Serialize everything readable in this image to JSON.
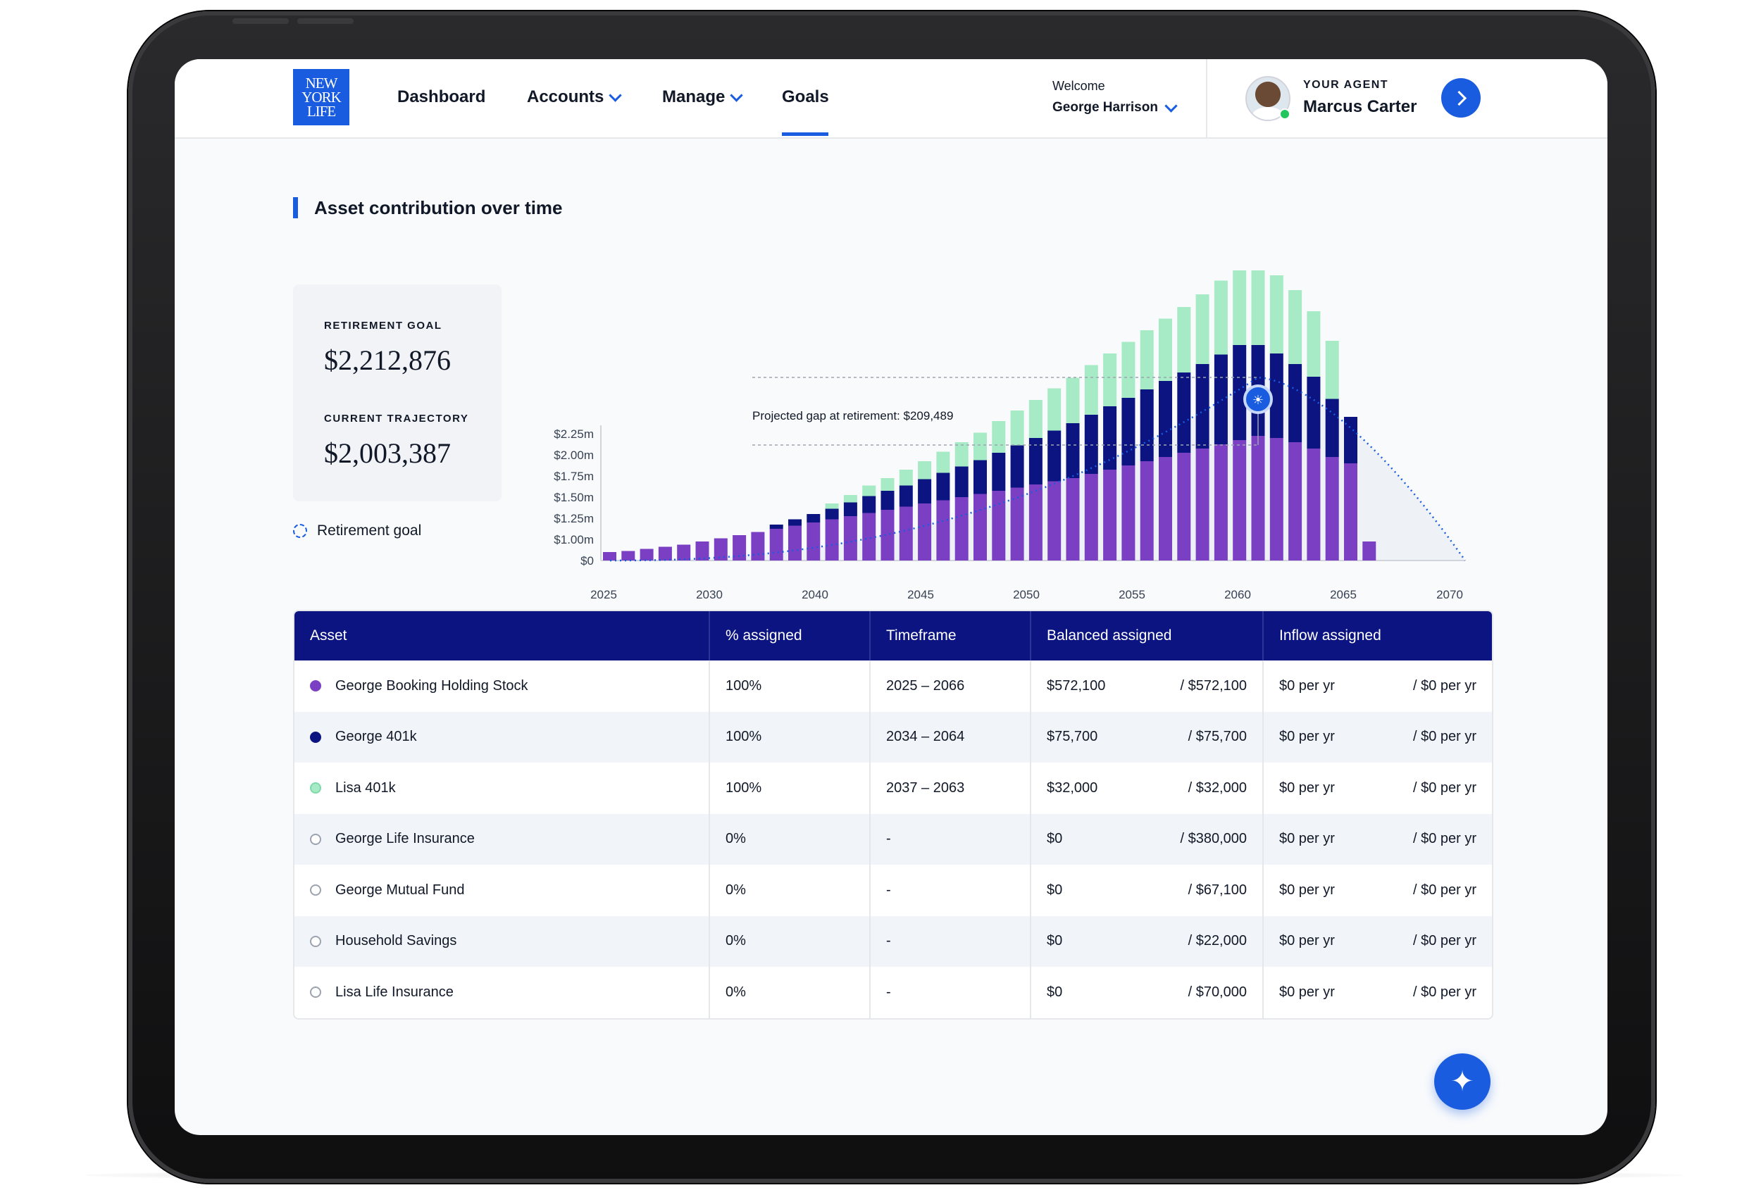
{
  "logo": {
    "line1": "NEW",
    "line2": "YORK",
    "line3": "LIFE"
  },
  "nav": {
    "dashboard": "Dashboard",
    "accounts": "Accounts",
    "manage": "Manage",
    "goals": "Goals"
  },
  "user": {
    "welcome": "Welcome",
    "name": "George Harrison"
  },
  "agent": {
    "label": "YOUR AGENT",
    "name": "Marcus Carter"
  },
  "section": {
    "title": "Asset contribution over time"
  },
  "summary": {
    "goal_label": "RETIREMENT GOAL",
    "goal_value": "$2,212,876",
    "trajectory_label": "CURRENT TRAJECTORY",
    "trajectory_value": "$2,003,387"
  },
  "legend": {
    "retirement_goal": "Retirement goal"
  },
  "colors": {
    "purple": "#7b3fc4",
    "navy": "#0b1480",
    "mint": "#a6ebc6",
    "accent": "#1a5cdf"
  },
  "chart_data": {
    "type": "bar",
    "stacked": true,
    "yticks": [
      "$0",
      "$1.00m",
      "$1.25m",
      "$1.50m",
      "$1.75m",
      "$2.00m",
      "$2.25m"
    ],
    "xticks": [
      "2025",
      "2030",
      "2040",
      "2045",
      "2050",
      "2055",
      "2060",
      "2065",
      "2070"
    ],
    "annotation": "Projected gap at retirement: $209,489",
    "x": [
      2025,
      2026,
      2027,
      2028,
      2029,
      2030,
      2031,
      2032,
      2033,
      2034,
      2035,
      2036,
      2037,
      2038,
      2039,
      2040,
      2041,
      2042,
      2043,
      2044,
      2045,
      2046,
      2047,
      2048,
      2049,
      2050,
      2051,
      2052,
      2053,
      2054,
      2055,
      2056,
      2057,
      2058,
      2059,
      2060,
      2061,
      2062,
      2063,
      2064,
      2065,
      2066
    ],
    "series": [
      {
        "name": "George Booking Holding Stock",
        "values": [
          0.08,
          0.09,
          0.11,
          0.13,
          0.15,
          0.18,
          0.21,
          0.24,
          0.27,
          0.3,
          0.33,
          0.36,
          0.39,
          0.42,
          0.45,
          0.48,
          0.51,
          0.54,
          0.57,
          0.6,
          0.63,
          0.66,
          0.69,
          0.72,
          0.75,
          0.78,
          0.82,
          0.86,
          0.9,
          0.94,
          0.98,
          1.02,
          1.06,
          1.1,
          1.14,
          1.18,
          1.16,
          1.12,
          1.06,
          0.98,
          0.92,
          0.18
        ]
      },
      {
        "name": "George 401k",
        "values": [
          0,
          0,
          0,
          0,
          0,
          0,
          0,
          0,
          0,
          0.04,
          0.06,
          0.08,
          0.1,
          0.13,
          0.16,
          0.18,
          0.2,
          0.23,
          0.26,
          0.29,
          0.32,
          0.36,
          0.4,
          0.44,
          0.48,
          0.52,
          0.56,
          0.6,
          0.64,
          0.68,
          0.72,
          0.76,
          0.8,
          0.85,
          0.9,
          0.86,
          0.8,
          0.74,
          0.68,
          0.55,
          0.44,
          0
        ]
      },
      {
        "name": "Lisa 401k",
        "values": [
          0,
          0,
          0,
          0,
          0,
          0,
          0,
          0,
          0,
          0,
          0,
          0,
          0.05,
          0.07,
          0.1,
          0.12,
          0.15,
          0.17,
          0.2,
          0.23,
          0.26,
          0.3,
          0.33,
          0.36,
          0.4,
          0.43,
          0.47,
          0.5,
          0.53,
          0.56,
          0.59,
          0.62,
          0.66,
          0.7,
          0.75,
          0.78,
          0.74,
          0.7,
          0.62,
          0.55,
          0,
          0
        ]
      }
    ],
    "goal_curve": true
  },
  "table": {
    "headers": [
      "Asset",
      "% assigned",
      "Timeframe",
      "Balanced assigned",
      "Inflow assigned"
    ],
    "rows": [
      {
        "asset": "George Booking Holding Stock",
        "pct": "100%",
        "timeframe": "2025 – 2066",
        "bal": "$572,100",
        "bal_total": "/ $572,100",
        "inflow": "$0 per yr",
        "inflow_total": "/ $0 per yr"
      },
      {
        "asset": "George 401k",
        "pct": "100%",
        "timeframe": "2034 – 2064",
        "bal": "$75,700",
        "bal_total": "/ $75,700",
        "inflow": "$0 per yr",
        "inflow_total": "/ $0 per yr"
      },
      {
        "asset": "Lisa 401k",
        "pct": "100%",
        "timeframe": "2037 – 2063",
        "bal": "$32,000",
        "bal_total": "/ $32,000",
        "inflow": "$0 per yr",
        "inflow_total": "/ $0 per yr"
      },
      {
        "asset": "George Life Insurance",
        "pct": "0%",
        "timeframe": "-",
        "bal": "$0",
        "bal_total": "/ $380,000",
        "inflow": "$0 per yr",
        "inflow_total": "/ $0 per yr"
      },
      {
        "asset": "George Mutual Fund",
        "pct": "0%",
        "timeframe": "-",
        "bal": "$0",
        "bal_total": "/ $67,100",
        "inflow": "$0 per yr",
        "inflow_total": "/ $0 per yr"
      },
      {
        "asset": "Household Savings",
        "pct": "0%",
        "timeframe": "-",
        "bal": "$0",
        "bal_total": "/ $22,000",
        "inflow": "$0 per yr",
        "inflow_total": "/ $0 per yr"
      },
      {
        "asset": "Lisa Life Insurance",
        "pct": "0%",
        "timeframe": "-",
        "bal": "$0",
        "bal_total": "/ $70,000",
        "inflow": "$0 per yr",
        "inflow_total": "/ $0 per yr"
      }
    ]
  }
}
